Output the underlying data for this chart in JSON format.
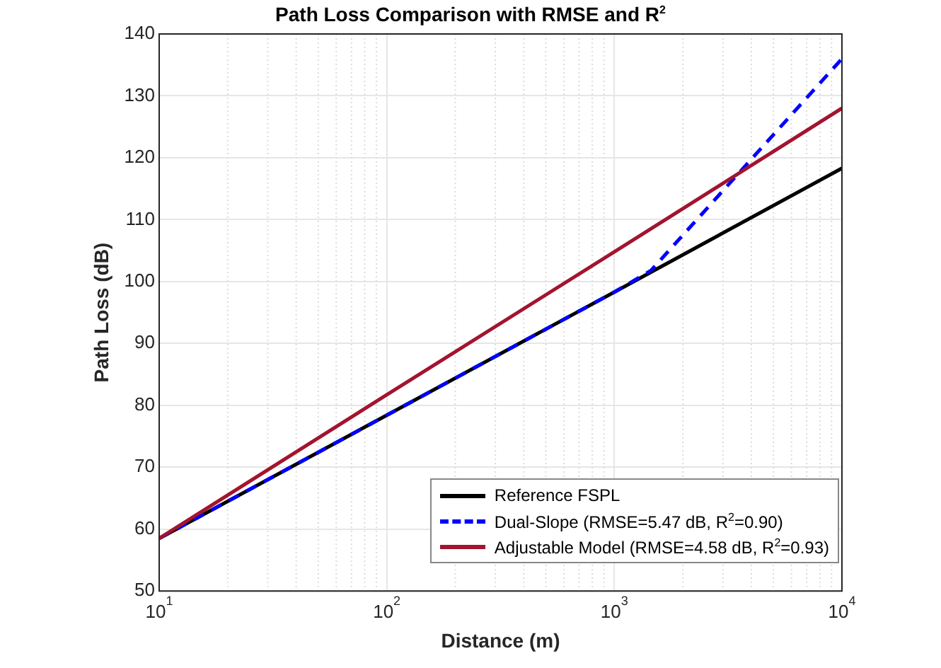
{
  "chart_data": {
    "type": "line",
    "title": "Path Loss Comparison with RMSE and R$^{2}$",
    "xlabel": "Distance (m)",
    "ylabel": "Path Loss (dB)",
    "log": "x",
    "grid": true,
    "legend": "bottom right",
    "line_style": "solid",
    "marker": "none",
    "xlim": [
      10,
      10000
    ],
    "xticks": [
      {
        "value": 10,
        "label": "10$^{1}$"
      },
      {
        "value": 100,
        "label": "10$^{2}$"
      },
      {
        "value": 1000,
        "label": "10$^{3}$"
      },
      {
        "value": 10000,
        "label": "10$^{4}$"
      }
    ],
    "ylim": [
      50,
      140
    ],
    "yticks": [
      50,
      60,
      70,
      80,
      90,
      100,
      110,
      120,
      130,
      140
    ],
    "series": [
      {
        "name": "Reference FSPL",
        "color": "#000000",
        "x": [
          10,
          100,
          1000,
          10000
        ],
        "values": [
          58.5,
          78.4,
          98.3,
          118.3
        ]
      },
      {
        "name": "Dual-Slope (RMSE=5.47 dB, R$^{2}$=0.90)",
        "color": "#0000ff",
        "line_style": "dashed",
        "x": [
          10,
          100,
          1000,
          1450,
          10000
        ],
        "values": [
          58.5,
          78.4,
          98.3,
          101.8,
          136
        ]
      },
      {
        "name": "Adjustable Model (RMSE=4.58 dB, R$^{2}$=0.93)",
        "color": "#a2142f",
        "x": [
          10,
          100,
          1000,
          10000
        ],
        "values": [
          58.5,
          81.7,
          104.8,
          128
        ]
      }
    ]
  }
}
